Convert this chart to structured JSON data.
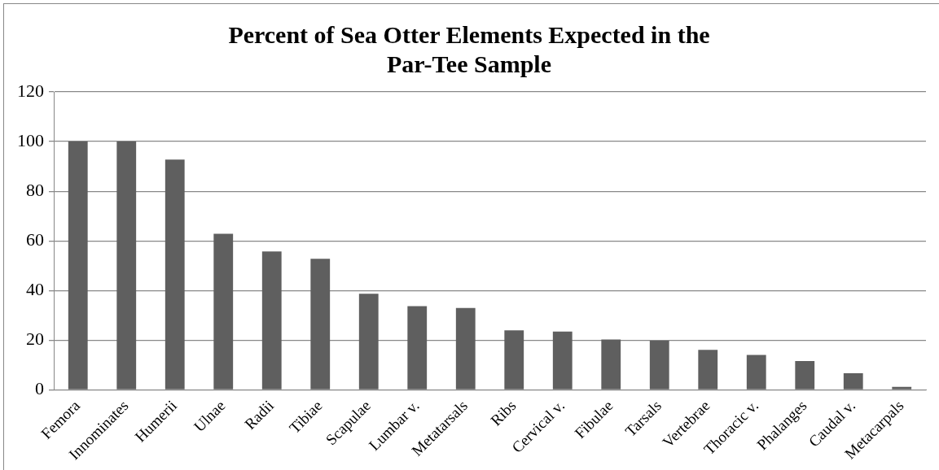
{
  "chart_data": {
    "type": "bar",
    "title": "Percent of Sea Otter Elements Expected in the Par-Tee Sample",
    "categories": [
      "Femora",
      "Innominates",
      "Humerii",
      "Ulnae",
      "Radii",
      "Tibiae",
      "Scapulae",
      "Lumbar v.",
      "Metatarsals",
      "Ribs",
      "Cervical v.",
      "Fibulae",
      "Tarsals",
      "Vertebrae",
      "Thoracic v.",
      "Phalanges",
      "Caudal v.",
      "Metacarpals"
    ],
    "values": [
      100,
      100,
      92.7,
      62.9,
      55.7,
      52.8,
      38.7,
      33.7,
      33,
      24,
      23.5,
      20.3,
      19.8,
      16.1,
      14.1,
      11.6,
      6.7,
      1.2
    ],
    "color": "#5f5f5f",
    "ylim": [
      0,
      120
    ],
    "yticks": [
      0,
      20,
      40,
      60,
      80,
      100,
      120
    ],
    "grid": "y",
    "legend": false
  }
}
